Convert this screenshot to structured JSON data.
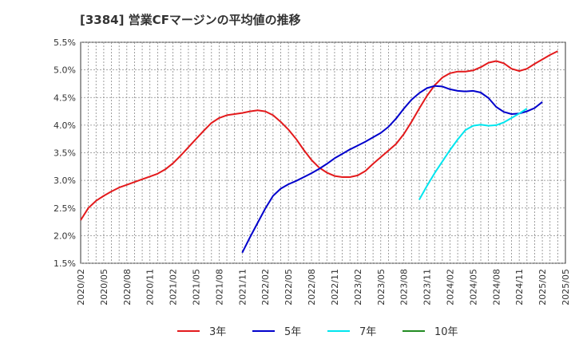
{
  "chart_data": {
    "type": "line",
    "title": "[3384]  営業CFマージンの平均値の推移",
    "xlabel": "",
    "ylabel": "",
    "ylim": [
      1.5,
      5.5
    ],
    "y_ticks": [
      "5.5%",
      "5.0%",
      "4.5%",
      "4.0%",
      "3.5%",
      "3.0%",
      "2.5%",
      "2.0%",
      "1.5%"
    ],
    "x_ticks": [
      "2020/02",
      "2020/05",
      "2020/08",
      "2020/11",
      "2021/02",
      "2021/05",
      "2021/08",
      "2021/11",
      "2022/02",
      "2022/05",
      "2022/08",
      "2022/11",
      "2023/02",
      "2023/05",
      "2023/08",
      "2023/11",
      "2024/02",
      "2024/05",
      "2024/08",
      "2024/11",
      "2025/02",
      "2025/05"
    ],
    "x_start": "2020/02",
    "x_end": "2025/05",
    "grid": true,
    "legend_position": "bottom",
    "series": [
      {
        "name": "3年",
        "color": "#e31a1c",
        "start": "2020/02",
        "values": [
          2.28,
          2.5,
          2.63,
          2.72,
          2.8,
          2.87,
          2.92,
          2.97,
          3.02,
          3.07,
          3.12,
          3.2,
          3.31,
          3.45,
          3.6,
          3.75,
          3.9,
          4.04,
          4.13,
          4.18,
          4.2,
          4.22,
          4.25,
          4.27,
          4.25,
          4.18,
          4.06,
          3.92,
          3.75,
          3.55,
          3.37,
          3.23,
          3.14,
          3.08,
          3.06,
          3.06,
          3.09,
          3.17,
          3.3,
          3.42,
          3.54,
          3.66,
          3.84,
          4.06,
          4.3,
          4.53,
          4.72,
          4.86,
          4.94,
          4.97,
          4.97,
          4.99,
          5.05,
          5.13,
          5.16,
          5.12,
          5.02,
          4.98,
          5.02,
          5.11,
          5.19,
          5.27,
          5.34
        ]
      },
      {
        "name": "5年",
        "color": "#0000cc",
        "start": "2021/11",
        "values": [
          1.69,
          1.97,
          2.23,
          2.49,
          2.72,
          2.85,
          2.93,
          2.99,
          3.06,
          3.13,
          3.21,
          3.3,
          3.4,
          3.48,
          3.56,
          3.63,
          3.7,
          3.78,
          3.86,
          3.97,
          4.12,
          4.3,
          4.46,
          4.58,
          4.67,
          4.71,
          4.7,
          4.65,
          4.62,
          4.61,
          4.62,
          4.59,
          4.49,
          4.33,
          4.24,
          4.2,
          4.21,
          4.25,
          4.31,
          4.42
        ]
      },
      {
        "name": "7年",
        "color": "#00e5ee",
        "start": "2023/10",
        "values": [
          2.65,
          2.9,
          3.13,
          3.34,
          3.55,
          3.74,
          3.91,
          3.99,
          4.01,
          3.99,
          4.0,
          4.05,
          4.13,
          4.21,
          4.3
        ]
      },
      {
        "name": "10年",
        "color": "#228b22",
        "start": "2025/02",
        "values": []
      }
    ]
  }
}
